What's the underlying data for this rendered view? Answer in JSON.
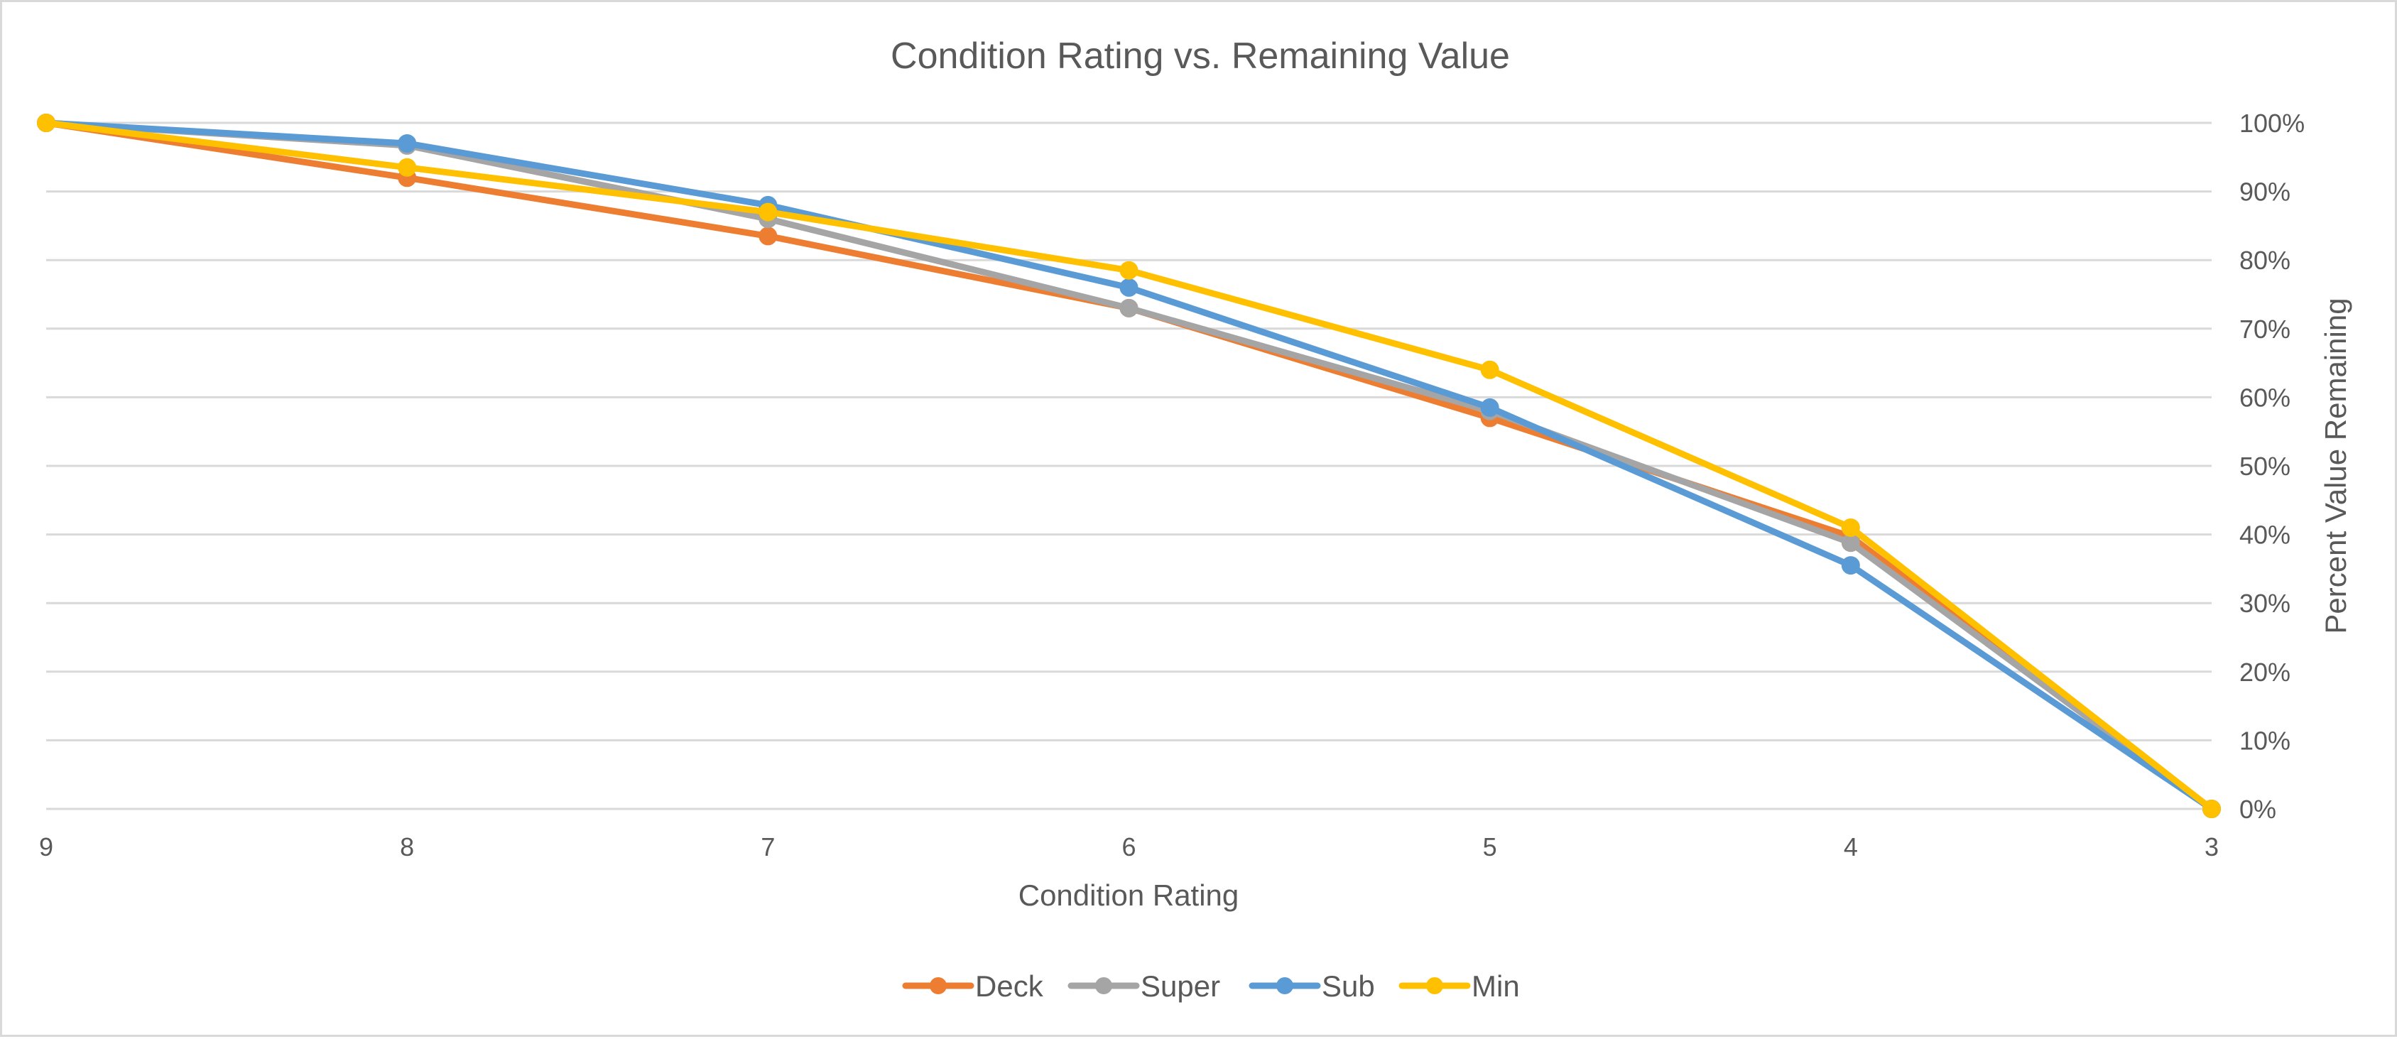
{
  "chart_data": {
    "type": "line",
    "title": "Condition Rating vs. Remaining Value",
    "xlabel": "Condition Rating",
    "ylabel": "Percent Value Remaining",
    "y_axis_side": "right",
    "x": [
      9,
      8,
      7,
      6,
      5,
      4,
      3
    ],
    "x_tick_labels": [
      "9",
      "8",
      "7",
      "6",
      "5",
      "4",
      "3"
    ],
    "ylim": [
      0,
      100
    ],
    "y_ticks": [
      0,
      10,
      20,
      30,
      40,
      50,
      60,
      70,
      80,
      90,
      100
    ],
    "y_tick_labels": [
      "0%",
      "10%",
      "20%",
      "30%",
      "40%",
      "50%",
      "60%",
      "70%",
      "80%",
      "90%",
      "100%"
    ],
    "grid": true,
    "legend_position": "bottom",
    "series": [
      {
        "name": "Deck",
        "color": "#ed7d31",
        "values": [
          100,
          92.0,
          83.5,
          73.0,
          57.0,
          39.7,
          0
        ]
      },
      {
        "name": "Super",
        "color": "#a5a5a5",
        "values": [
          100,
          96.7,
          86.0,
          73.0,
          58.0,
          38.8,
          0
        ]
      },
      {
        "name": "Sub",
        "color": "#5b9bd5",
        "values": [
          100,
          97.0,
          88.0,
          76.0,
          58.5,
          35.5,
          0
        ]
      },
      {
        "name": "Min",
        "color": "#ffc000",
        "values": [
          100,
          93.5,
          87.0,
          78.5,
          64.0,
          41.0,
          0
        ]
      }
    ]
  }
}
